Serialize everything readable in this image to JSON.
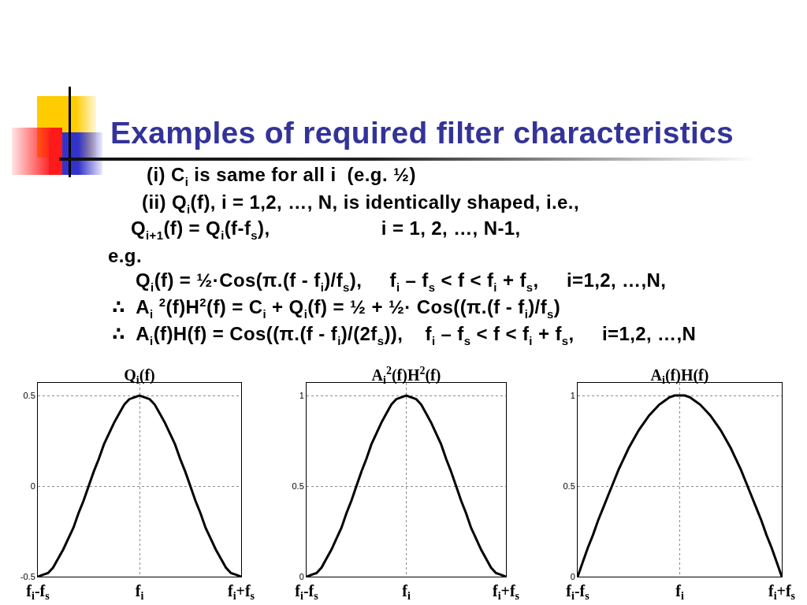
{
  "chart_data": [
    {
      "type": "other",
      "title": "Examples of required filter characteristics",
      "annotations": [
        "(i) C$_{i}$ is same for all i  (e.g. ½)",
        "(ii) Q$_{i}$(f), i = 1,2, …, N, is identically shaped, i.e.,",
        "Q$_{i+1}$(f) = Q$_{i}$(f-f$_{s}$),                    i = 1, 2, …, N-1,",
        "e.g.",
        "Q$_{i}$(f) = ½·Cos(π.(f - f$_{i}$)/f$_{s}$),     f$_{i}$ – f$_{s}$ < f < f$_{i}$ + f$_{s}$,     i=1,2, …,N,",
        "∴  A$_{i}$ $^{2}$(f)H$^{2}$(f) = C$_{i}$ + Q$_{i}$(f) = ½ + ½· Cos((π.(f - f$_{i}$)/f$_{s}$)",
        "∴  A$_{i}$(f)H(f) = Cos((π.(f - f$_{i}$)/(2f$_{s}$)),    f$_{i}$ – f$_{s}$ < f < f$_{i}$ + f$_{s}$,     i=1,2, …,N"
      ]
    },
    {
      "type": "line",
      "title": "Q$_{i}$(f)",
      "categories": [
        "f$_{i}$-f$_{s}$",
        null,
        null,
        null,
        null,
        null,
        null,
        null,
        null,
        null,
        null,
        null,
        null,
        null,
        null,
        null,
        null,
        null,
        null,
        null,
        "f$_{i}$",
        null,
        null,
        null,
        null,
        null,
        null,
        null,
        null,
        null,
        null,
        null,
        null,
        null,
        null,
        null,
        null,
        null,
        null,
        null,
        "f$_{i}$+f$_{s}$"
      ],
      "ylim": [
        -0.5,
        0.57
      ],
      "yticks": [
        -0.5,
        0,
        0.5
      ],
      "grid": true,
      "series": [
        {
          "color": "#000000",
          "values": [
            -0.5,
            -0.49,
            -0.48,
            -0.45,
            -0.4,
            -0.35,
            -0.29,
            -0.23,
            -0.15,
            -0.08,
            0,
            0.08,
            0.15,
            0.23,
            0.29,
            0.35,
            0.4,
            0.45,
            0.48,
            0.49,
            0.5,
            0.49,
            0.48,
            0.45,
            0.4,
            0.35,
            0.29,
            0.23,
            0.15,
            0.08,
            0,
            -0.08,
            -0.15,
            -0.23,
            -0.29,
            -0.35,
            -0.4,
            -0.45,
            -0.48,
            -0.49,
            -0.5
          ]
        }
      ]
    },
    {
      "type": "line",
      "title": "A$_{i}$$^{2}$(f)H$^{2}$(f)",
      "categories": [
        "f$_{i}$-f$_{s}$",
        null,
        null,
        null,
        null,
        null,
        null,
        null,
        null,
        null,
        null,
        null,
        null,
        null,
        null,
        null,
        null,
        null,
        null,
        null,
        "f$_{i}$",
        null,
        null,
        null,
        null,
        null,
        null,
        null,
        null,
        null,
        null,
        null,
        null,
        null,
        null,
        null,
        null,
        null,
        null,
        null,
        "f$_{i}$+f$_{s}$"
      ],
      "ylim": [
        0,
        1.07
      ],
      "yticks": [
        0,
        0.5,
        1
      ],
      "grid": true,
      "series": [
        {
          "color": "#000000",
          "values": [
            0,
            0.01,
            0.02,
            0.05,
            0.1,
            0.15,
            0.21,
            0.27,
            0.35,
            0.42,
            0.5,
            0.58,
            0.65,
            0.73,
            0.79,
            0.85,
            0.9,
            0.95,
            0.98,
            0.99,
            1,
            0.99,
            0.98,
            0.95,
            0.9,
            0.85,
            0.79,
            0.73,
            0.65,
            0.58,
            0.5,
            0.42,
            0.35,
            0.27,
            0.21,
            0.15,
            0.1,
            0.05,
            0.02,
            0.01,
            0
          ]
        }
      ]
    },
    {
      "type": "line",
      "title": "A$_{i}$(f)H(f)",
      "categories": [
        "f$_{i}$-f$_{s}$",
        null,
        null,
        null,
        null,
        null,
        null,
        null,
        null,
        null,
        null,
        null,
        null,
        null,
        null,
        null,
        null,
        null,
        null,
        null,
        "f$_{i}$",
        null,
        null,
        null,
        null,
        null,
        null,
        null,
        null,
        null,
        null,
        null,
        null,
        null,
        null,
        null,
        null,
        null,
        null,
        null,
        "f$_{i}$+f$_{s}$"
      ],
      "ylim": [
        0,
        1.07
      ],
      "yticks": [
        0,
        0.5,
        1
      ],
      "grid": true,
      "series": [
        {
          "color": "#000000",
          "values": [
            0,
            0.08,
            0.16,
            0.23,
            0.31,
            0.38,
            0.45,
            0.52,
            0.59,
            0.65,
            0.71,
            0.76,
            0.81,
            0.85,
            0.89,
            0.92,
            0.95,
            0.97,
            0.99,
            1,
            1,
            1,
            0.99,
            0.97,
            0.95,
            0.92,
            0.89,
            0.85,
            0.81,
            0.76,
            0.71,
            0.65,
            0.59,
            0.52,
            0.45,
            0.38,
            0.31,
            0.23,
            0.16,
            0.08,
            0
          ]
        }
      ]
    }
  ]
}
